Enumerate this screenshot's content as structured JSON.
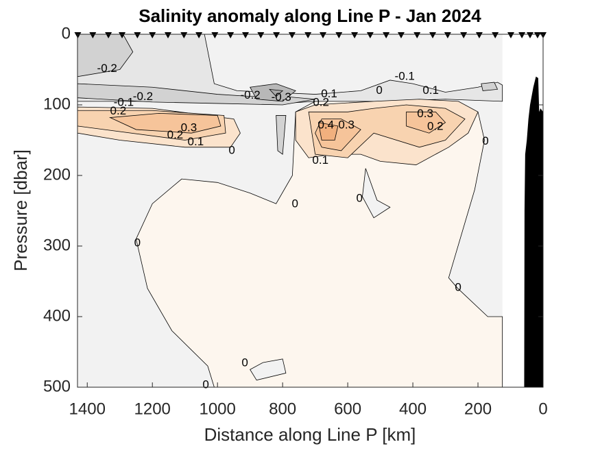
{
  "chart_data": {
    "type": "contour",
    "title": "Salinity anomaly along Line P - Jan 2024",
    "xlabel": "Distance along Line P [km]",
    "ylabel": "Pressure [dbar]",
    "xlim": [
      1430,
      0
    ],
    "ylim": [
      0,
      500
    ],
    "xticks": [
      1400,
      1200,
      1000,
      800,
      600,
      400,
      200,
      0
    ],
    "yticks": [
      0,
      100,
      200,
      300,
      400,
      500
    ],
    "data_extent": [
      1430,
      125
    ],
    "background_color": "#f2f2f2",
    "stations": [
      1429,
      1383,
      1335,
      1293,
      1246,
      1200,
      1152,
      1103,
      1057,
      1008,
      960,
      914,
      867,
      819,
      771,
      722,
      676,
      627,
      579,
      531,
      482,
      436,
      387,
      339,
      293,
      244,
      196,
      147,
      99,
      65,
      40,
      17,
      0
    ],
    "regions": [
      {
        "color": "#fdf6ee",
        "points": [
          [
            1010,
            500
          ],
          [
            1030,
            470
          ],
          [
            1140,
            420
          ],
          [
            1215,
            360
          ],
          [
            1250,
            290
          ],
          [
            1200,
            240
          ],
          [
            1110,
            205
          ],
          [
            1000,
            210
          ],
          [
            900,
            225
          ],
          [
            820,
            240
          ],
          [
            770,
            200
          ],
          [
            760,
            110
          ],
          [
            700,
            95
          ],
          [
            520,
            92
          ],
          [
            300,
            95
          ],
          [
            200,
            110
          ],
          [
            180,
            150
          ],
          [
            210,
            220
          ],
          [
            290,
            345
          ],
          [
            262,
            360
          ],
          [
            170,
            400
          ],
          [
            125,
            400
          ],
          [
            125,
            500
          ]
        ]
      },
      {
        "color": "#f2f2f2",
        "points": [
          [
            545,
            190
          ],
          [
            555,
            230
          ],
          [
            520,
            260
          ],
          [
            470,
            245
          ],
          [
            510,
            235
          ]
        ]
      },
      {
        "color": "#f2f2f2",
        "points": [
          [
            900,
            475
          ],
          [
            860,
            465
          ],
          [
            800,
            460
          ],
          [
            790,
            480
          ],
          [
            880,
            490
          ]
        ]
      },
      {
        "color": "#e6e6e6",
        "points": [
          [
            1430,
            0
          ],
          [
            1040,
            0
          ],
          [
            1010,
            70
          ],
          [
            940,
            80
          ],
          [
            700,
            85
          ],
          [
            560,
            80
          ],
          [
            470,
            65
          ],
          [
            400,
            70
          ],
          [
            300,
            82
          ],
          [
            200,
            75
          ],
          [
            140,
            68
          ],
          [
            125,
            72
          ],
          [
            125,
            95
          ],
          [
            300,
            92
          ],
          [
            500,
            95
          ],
          [
            700,
            95
          ],
          [
            800,
            98
          ],
          [
            1000,
            97
          ],
          [
            1200,
            95
          ],
          [
            1430,
            95
          ]
        ]
      },
      {
        "color": "#d2d2d2",
        "points": [
          [
            1430,
            0
          ],
          [
            1290,
            0
          ],
          [
            1260,
            25
          ],
          [
            1300,
            50
          ],
          [
            1430,
            60
          ]
        ]
      },
      {
        "color": "#d2d2d2",
        "points": [
          [
            1430,
            70
          ],
          [
            1200,
            75
          ],
          [
            1000,
            85
          ],
          [
            900,
            88
          ],
          [
            800,
            88
          ],
          [
            700,
            92
          ],
          [
            800,
            100
          ],
          [
            1000,
            98
          ],
          [
            1200,
            96
          ],
          [
            1430,
            90
          ]
        ]
      },
      {
        "color": "#d2d2d2",
        "points": [
          [
            190,
            70
          ],
          [
            150,
            68
          ],
          [
            140,
            78
          ],
          [
            185,
            80
          ]
        ]
      },
      {
        "color": "#d2d2d2",
        "points": [
          [
            820,
            115
          ],
          [
            790,
            115
          ],
          [
            800,
            170
          ],
          [
            815,
            165
          ]
        ]
      },
      {
        "color": "#b8b8b8",
        "points": [
          [
            900,
            75
          ],
          [
            820,
            70
          ],
          [
            760,
            80
          ],
          [
            800,
            95
          ],
          [
            880,
            92
          ]
        ]
      },
      {
        "color": "#a8a8a8",
        "points": [
          [
            840,
            78
          ],
          [
            800,
            80
          ],
          [
            820,
            88
          ]
        ]
      },
      {
        "color": "#fbe3cc",
        "points": [
          [
            1430,
            103
          ],
          [
            1200,
            105
          ],
          [
            950,
            120
          ],
          [
            930,
            140
          ],
          [
            960,
            160
          ],
          [
            1100,
            160
          ],
          [
            1300,
            150
          ],
          [
            1430,
            140
          ]
        ]
      },
      {
        "color": "#f8d3b0",
        "points": [
          [
            1430,
            108
          ],
          [
            1200,
            108
          ],
          [
            980,
            115
          ],
          [
            975,
            140
          ],
          [
            1100,
            150
          ],
          [
            1430,
            130
          ]
        ]
      },
      {
        "color": "#f6c49a",
        "points": [
          [
            1330,
            118
          ],
          [
            1180,
            112
          ],
          [
            1000,
            115
          ],
          [
            990,
            130
          ],
          [
            1080,
            140
          ],
          [
            1250,
            135
          ]
        ]
      },
      {
        "color": "#fbe3cc",
        "points": [
          [
            760,
            110
          ],
          [
            700,
            100
          ],
          [
            520,
            95
          ],
          [
            380,
            92
          ],
          [
            260,
            95
          ],
          [
            200,
            110
          ],
          [
            230,
            140
          ],
          [
            290,
            160
          ],
          [
            390,
            185
          ],
          [
            500,
            180
          ],
          [
            560,
            170
          ],
          [
            650,
            170
          ],
          [
            720,
            175
          ],
          [
            760,
            150
          ]
        ]
      },
      {
        "color": "#f8d3b0",
        "points": [
          [
            720,
            110
          ],
          [
            600,
            110
          ],
          [
            520,
            105
          ],
          [
            420,
            100
          ],
          [
            300,
            105
          ],
          [
            240,
            120
          ],
          [
            300,
            150
          ],
          [
            380,
            160
          ],
          [
            520,
            140
          ],
          [
            600,
            175
          ],
          [
            700,
            170
          ]
        ]
      },
      {
        "color": "#f6c49a",
        "points": [
          [
            680,
            120
          ],
          [
            620,
            120
          ],
          [
            560,
            135
          ],
          [
            620,
            165
          ],
          [
            680,
            160
          ],
          [
            700,
            140
          ]
        ]
      },
      {
        "color": "#f6c49a",
        "points": [
          [
            420,
            110
          ],
          [
            330,
            110
          ],
          [
            300,
            125
          ],
          [
            350,
            140
          ],
          [
            420,
            130
          ]
        ]
      },
      {
        "color": "#f1b07e",
        "points": [
          [
            690,
            125
          ],
          [
            630,
            130
          ],
          [
            640,
            150
          ],
          [
            680,
            150
          ]
        ]
      }
    ],
    "bathymetry": {
      "color": "#000000",
      "points": [
        [
          58,
          500
        ],
        [
          57,
          250
        ],
        [
          55,
          170
        ],
        [
          50,
          150
        ],
        [
          45,
          120
        ],
        [
          40,
          100
        ],
        [
          30,
          75
        ],
        [
          22,
          60
        ],
        [
          15,
          62
        ],
        [
          12,
          110
        ],
        [
          8,
          105
        ],
        [
          0,
          110
        ],
        [
          0,
          500
        ]
      ]
    },
    "contour_labels": [
      {
        "level": -0.2,
        "x": 1339,
        "y": 49
      },
      {
        "level": -0.1,
        "x": 425,
        "y": 60
      },
      {
        "level": 0,
        "x": 503,
        "y": 80
      },
      {
        "level": 0.1,
        "x": 345,
        "y": 80
      },
      {
        "level": -0.2,
        "x": 899,
        "y": 87
      },
      {
        "level": -0.3,
        "x": 804,
        "y": 90
      },
      {
        "level": 0.1,
        "x": 657,
        "y": 85
      },
      {
        "level": -0.2,
        "x": 1229,
        "y": 89
      },
      {
        "level": -0.1,
        "x": 1288,
        "y": 97
      },
      {
        "level": 0.2,
        "x": 1305,
        "y": 109
      },
      {
        "level": 0.2,
        "x": 682,
        "y": 97
      },
      {
        "level": 0.4,
        "x": 667,
        "y": 129
      },
      {
        "level": 0.3,
        "x": 604,
        "y": 129
      },
      {
        "level": 0.3,
        "x": 362,
        "y": 113
      },
      {
        "level": 0.2,
        "x": 331,
        "y": 131
      },
      {
        "level": 0,
        "x": 177,
        "y": 152
      },
      {
        "level": 0.1,
        "x": 684,
        "y": 179
      },
      {
        "level": 0,
        "x": 956,
        "y": 165
      },
      {
        "level": 0.3,
        "x": 1088,
        "y": 133
      },
      {
        "level": 0.2,
        "x": 1130,
        "y": 143
      },
      {
        "level": 0.1,
        "x": 1067,
        "y": 153
      },
      {
        "level": 0,
        "x": 762,
        "y": 241
      },
      {
        "level": 0,
        "x": 564,
        "y": 233
      },
      {
        "level": 0,
        "x": 1246,
        "y": 296
      },
      {
        "level": 0,
        "x": 261,
        "y": 359
      },
      {
        "level": 0,
        "x": 916,
        "y": 466
      },
      {
        "level": 0,
        "x": 1036,
        "y": 497
      }
    ]
  }
}
